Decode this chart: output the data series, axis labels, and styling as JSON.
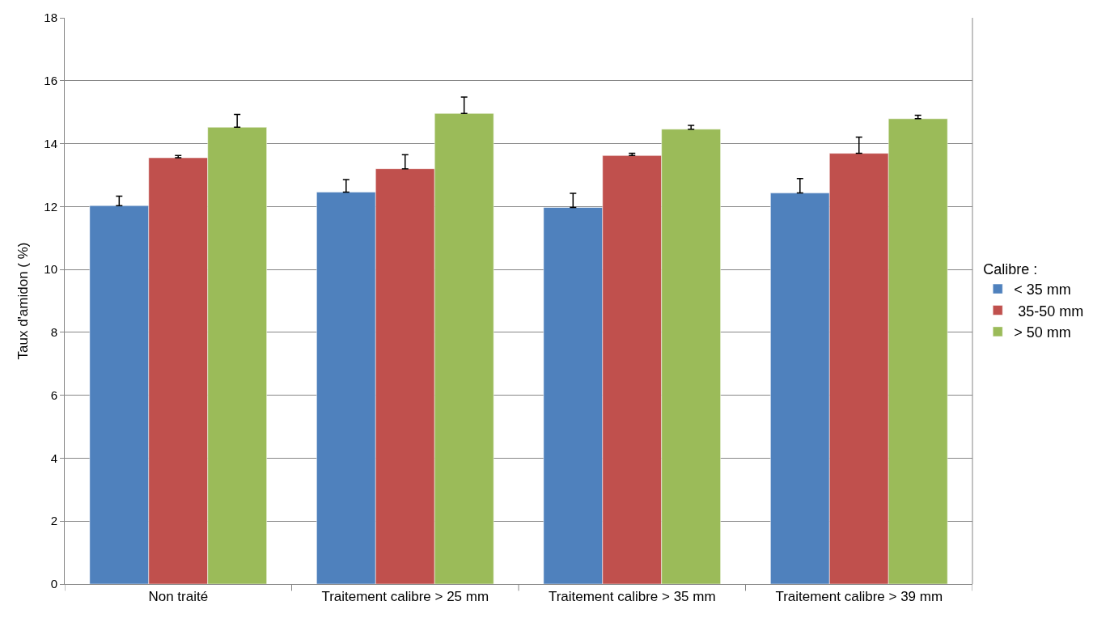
{
  "chart_data": {
    "type": "bar",
    "ylabel": "Taux d'amidon ( %)",
    "legend_title": "Calibre :",
    "categories": [
      "Non traité",
      "Traitement calibre > 25 mm",
      "Traitement calibre > 35 mm",
      "Traitement calibre > 39 mm"
    ],
    "series": [
      {
        "name": "< 35 mm",
        "color": "#4f81bd",
        "values": [
          12.03,
          12.46,
          11.97,
          12.43
        ],
        "errors": [
          [
            12.03,
            12.33
          ],
          [
            12.46,
            12.86
          ],
          [
            11.97,
            12.42
          ],
          [
            12.43,
            12.89
          ]
        ]
      },
      {
        "name": " 35-50 mm",
        "color": "#c0504d",
        "values": [
          13.55,
          13.2,
          13.62,
          13.69
        ],
        "errors": [
          [
            13.55,
            13.62
          ],
          [
            13.2,
            13.65
          ],
          [
            13.62,
            13.69
          ],
          [
            13.69,
            14.21
          ]
        ]
      },
      {
        "name": "> 50 mm",
        "color": "#9bbb59",
        "values": [
          14.52,
          14.96,
          14.46,
          14.79
        ],
        "errors": [
          [
            14.52,
            14.93
          ],
          [
            14.96,
            15.48
          ],
          [
            14.46,
            14.58
          ],
          [
            14.79,
            14.9
          ]
        ]
      }
    ],
    "ylim": [
      0,
      18
    ],
    "yticks": [
      0,
      2,
      4,
      6,
      8,
      10,
      12,
      14,
      16,
      18
    ],
    "grid": "y",
    "legend": "right"
  }
}
